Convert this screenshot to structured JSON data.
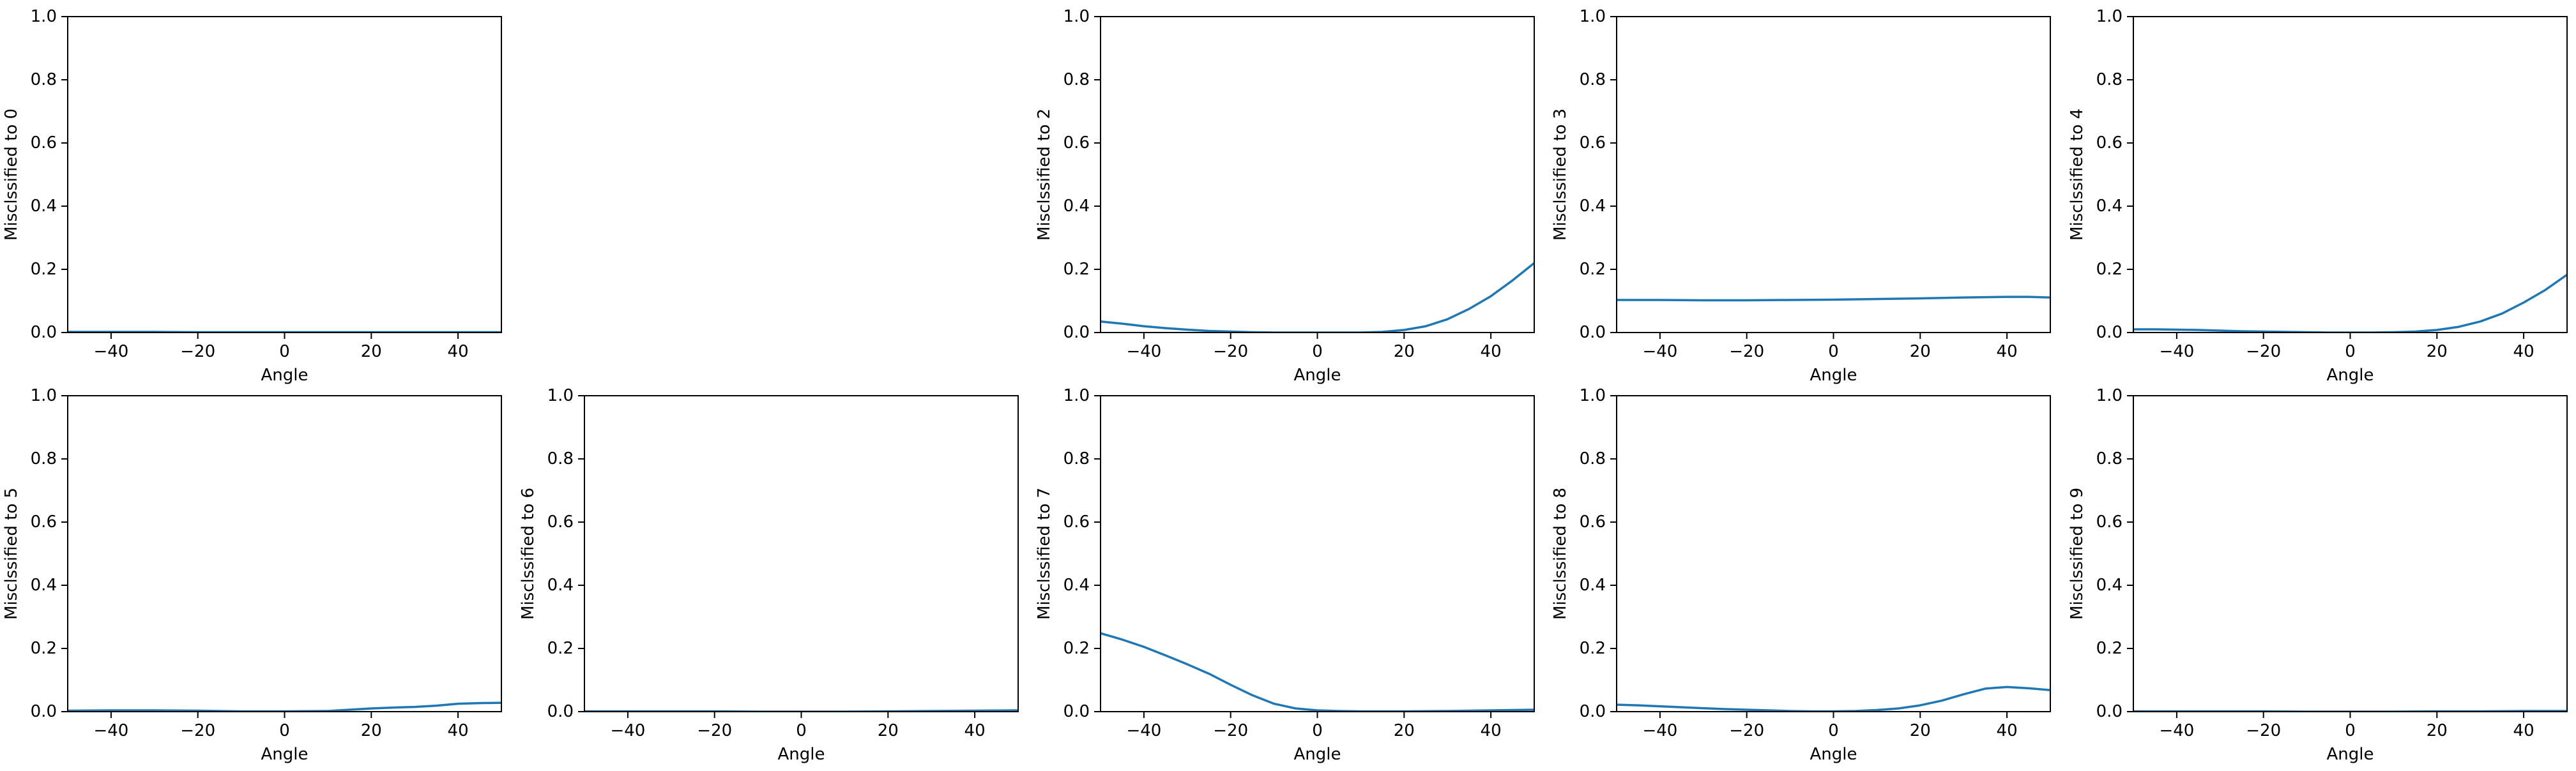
{
  "chart_data": [
    {
      "type": "line",
      "xlabel": "Angle",
      "ylabel": "Misclssified to 0",
      "xlim": [
        -50,
        50
      ],
      "ylim": [
        0,
        1
      ],
      "xticks": [
        -40,
        -20,
        0,
        20,
        40
      ],
      "xtick_labels": [
        "−40",
        "−20",
        "0",
        "20",
        "40"
      ],
      "yticks": [
        0,
        0.2,
        0.4,
        0.6,
        0.8,
        1.0
      ],
      "ytick_labels": [
        "0.0",
        "0.2",
        "0.4",
        "0.6",
        "0.8",
        "1.0"
      ],
      "grid": false,
      "series": [
        {
          "x": [
            -50,
            -40,
            -30,
            -20,
            -10,
            0,
            10,
            20,
            30,
            40,
            50
          ],
          "values": [
            0.002,
            0.002,
            0.002,
            0.001,
            0.001,
            0.001,
            0.001,
            0.001,
            0.001,
            0.001,
            0.001
          ]
        }
      ]
    },
    null,
    {
      "type": "line",
      "xlabel": "Angle",
      "ylabel": "Misclssified to 2",
      "xlim": [
        -50,
        50
      ],
      "ylim": [
        0,
        1
      ],
      "xticks": [
        -40,
        -20,
        0,
        20,
        40
      ],
      "xtick_labels": [
        "−40",
        "−20",
        "0",
        "20",
        "40"
      ],
      "yticks": [
        0,
        0.2,
        0.4,
        0.6,
        0.8,
        1.0
      ],
      "ytick_labels": [
        "0.0",
        "0.2",
        "0.4",
        "0.6",
        "0.8",
        "1.0"
      ],
      "grid": false,
      "series": [
        {
          "x": [
            -50,
            -45,
            -40,
            -35,
            -30,
            -25,
            -20,
            -15,
            -10,
            -5,
            0,
            5,
            10,
            15,
            20,
            25,
            30,
            35,
            40,
            45,
            50
          ],
          "values": [
            0.035,
            0.028,
            0.02,
            0.014,
            0.009,
            0.005,
            0.003,
            0.001,
            0.0,
            0.0,
            0.0,
            0.0,
            0.0,
            0.002,
            0.008,
            0.02,
            0.042,
            0.075,
            0.115,
            0.165,
            0.22
          ]
        }
      ]
    },
    {
      "type": "line",
      "xlabel": "Angle",
      "ylabel": "Misclssified to 3",
      "xlim": [
        -50,
        50
      ],
      "ylim": [
        0,
        1
      ],
      "xticks": [
        -40,
        -20,
        0,
        20,
        40
      ],
      "xtick_labels": [
        "−40",
        "−20",
        "0",
        "20",
        "40"
      ],
      "yticks": [
        0,
        0.2,
        0.4,
        0.6,
        0.8,
        1.0
      ],
      "ytick_labels": [
        "0.0",
        "0.2",
        "0.4",
        "0.6",
        "0.8",
        "1.0"
      ],
      "grid": false,
      "series": [
        {
          "x": [
            -50,
            -40,
            -30,
            -20,
            -10,
            0,
            10,
            20,
            30,
            40,
            45,
            50
          ],
          "values": [
            0.103,
            0.103,
            0.102,
            0.102,
            0.103,
            0.104,
            0.106,
            0.108,
            0.111,
            0.113,
            0.113,
            0.111
          ]
        }
      ]
    },
    {
      "type": "line",
      "xlabel": "Angle",
      "ylabel": "Misclssified to 4",
      "xlim": [
        -50,
        50
      ],
      "ylim": [
        0,
        1
      ],
      "xticks": [
        -40,
        -20,
        0,
        20,
        40
      ],
      "xtick_labels": [
        "−40",
        "−20",
        "0",
        "20",
        "40"
      ],
      "yticks": [
        0,
        0.2,
        0.4,
        0.6,
        0.8,
        1.0
      ],
      "ytick_labels": [
        "0.0",
        "0.2",
        "0.4",
        "0.6",
        "0.8",
        "1.0"
      ],
      "grid": false,
      "series": [
        {
          "x": [
            -50,
            -45,
            -40,
            -35,
            -30,
            -25,
            -20,
            -15,
            -10,
            -5,
            0,
            5,
            10,
            15,
            20,
            25,
            30,
            35,
            40,
            45,
            50
          ],
          "values": [
            0.01,
            0.01,
            0.009,
            0.008,
            0.006,
            0.004,
            0.003,
            0.002,
            0.001,
            0.0,
            0.0,
            0.0,
            0.001,
            0.003,
            0.008,
            0.018,
            0.035,
            0.06,
            0.095,
            0.135,
            0.183
          ]
        }
      ]
    },
    {
      "type": "line",
      "xlabel": "Angle",
      "ylabel": "Misclssified to 5",
      "xlim": [
        -50,
        50
      ],
      "ylim": [
        0,
        1
      ],
      "xticks": [
        -40,
        -20,
        0,
        20,
        40
      ],
      "xtick_labels": [
        "−40",
        "−20",
        "0",
        "20",
        "40"
      ],
      "yticks": [
        0,
        0.2,
        0.4,
        0.6,
        0.8,
        1.0
      ],
      "ytick_labels": [
        "0.0",
        "0.2",
        "0.4",
        "0.6",
        "0.8",
        "1.0"
      ],
      "grid": false,
      "series": [
        {
          "x": [
            -50,
            -40,
            -30,
            -20,
            -10,
            0,
            10,
            15,
            20,
            25,
            30,
            35,
            40,
            45,
            50
          ],
          "values": [
            0.003,
            0.004,
            0.004,
            0.003,
            0.001,
            0.001,
            0.002,
            0.006,
            0.01,
            0.013,
            0.015,
            0.019,
            0.025,
            0.027,
            0.028
          ]
        }
      ]
    },
    {
      "type": "line",
      "xlabel": "Angle",
      "ylabel": "Misclssified to 6",
      "xlim": [
        -50,
        50
      ],
      "ylim": [
        0,
        1
      ],
      "xticks": [
        -40,
        -20,
        0,
        20,
        40
      ],
      "xtick_labels": [
        "−40",
        "−20",
        "0",
        "20",
        "40"
      ],
      "yticks": [
        0,
        0.2,
        0.4,
        0.6,
        0.8,
        1.0
      ],
      "ytick_labels": [
        "0.0",
        "0.2",
        "0.4",
        "0.6",
        "0.8",
        "1.0"
      ],
      "grid": false,
      "series": [
        {
          "x": [
            -50,
            -40,
            -30,
            -20,
            -10,
            0,
            10,
            20,
            30,
            40,
            50
          ],
          "values": [
            0.001,
            0.001,
            0.001,
            0.001,
            0.0,
            0.0,
            0.0,
            0.001,
            0.002,
            0.003,
            0.004
          ]
        }
      ]
    },
    {
      "type": "line",
      "xlabel": "Angle",
      "ylabel": "Misclssified to 7",
      "xlim": [
        -50,
        50
      ],
      "ylim": [
        0,
        1
      ],
      "xticks": [
        -40,
        -20,
        0,
        20,
        40
      ],
      "xtick_labels": [
        "−40",
        "−20",
        "0",
        "20",
        "40"
      ],
      "yticks": [
        0,
        0.2,
        0.4,
        0.6,
        0.8,
        1.0
      ],
      "ytick_labels": [
        "0.0",
        "0.2",
        "0.4",
        "0.6",
        "0.8",
        "1.0"
      ],
      "grid": false,
      "series": [
        {
          "x": [
            -50,
            -45,
            -40,
            -35,
            -30,
            -25,
            -20,
            -15,
            -10,
            -5,
            0,
            5,
            10,
            20,
            30,
            40,
            50
          ],
          "values": [
            0.248,
            0.228,
            0.205,
            0.178,
            0.15,
            0.12,
            0.085,
            0.052,
            0.025,
            0.01,
            0.004,
            0.002,
            0.001,
            0.001,
            0.002,
            0.004,
            0.006
          ]
        }
      ]
    },
    {
      "type": "line",
      "xlabel": "Angle",
      "ylabel": "Misclssified to 8",
      "xlim": [
        -50,
        50
      ],
      "ylim": [
        0,
        1
      ],
      "xticks": [
        -40,
        -20,
        0,
        20,
        40
      ],
      "xtick_labels": [
        "−40",
        "−20",
        "0",
        "20",
        "40"
      ],
      "yticks": [
        0,
        0.2,
        0.4,
        0.6,
        0.8,
        1.0
      ],
      "ytick_labels": [
        "0.0",
        "0.2",
        "0.4",
        "0.6",
        "0.8",
        "1.0"
      ],
      "grid": false,
      "series": [
        {
          "x": [
            -50,
            -45,
            -40,
            -35,
            -30,
            -25,
            -20,
            -15,
            -10,
            -5,
            0,
            5,
            10,
            15,
            20,
            25,
            30,
            35,
            40,
            45,
            50
          ],
          "values": [
            0.022,
            0.02,
            0.017,
            0.014,
            0.011,
            0.008,
            0.006,
            0.004,
            0.002,
            0.001,
            0.001,
            0.002,
            0.005,
            0.01,
            0.02,
            0.035,
            0.055,
            0.073,
            0.078,
            0.074,
            0.068
          ]
        }
      ]
    },
    {
      "type": "line",
      "xlabel": "Angle",
      "ylabel": "Misclssified to 9",
      "xlim": [
        -50,
        50
      ],
      "ylim": [
        0,
        1
      ],
      "xticks": [
        -40,
        -20,
        0,
        20,
        40
      ],
      "xtick_labels": [
        "−40",
        "−20",
        "0",
        "20",
        "40"
      ],
      "yticks": [
        0,
        0.2,
        0.4,
        0.6,
        0.8,
        1.0
      ],
      "ytick_labels": [
        "0.0",
        "0.2",
        "0.4",
        "0.6",
        "0.8",
        "1.0"
      ],
      "grid": false,
      "series": [
        {
          "x": [
            -50,
            -40,
            -30,
            -20,
            -10,
            0,
            10,
            20,
            30,
            40,
            50
          ],
          "values": [
            0.001,
            0.001,
            0.001,
            0.001,
            0.0,
            0.0,
            0.0,
            0.001,
            0.001,
            0.002,
            0.002
          ]
        }
      ]
    }
  ],
  "colors": {
    "line": "#1f77b4",
    "axis": "#000000",
    "background": "#ffffff"
  }
}
